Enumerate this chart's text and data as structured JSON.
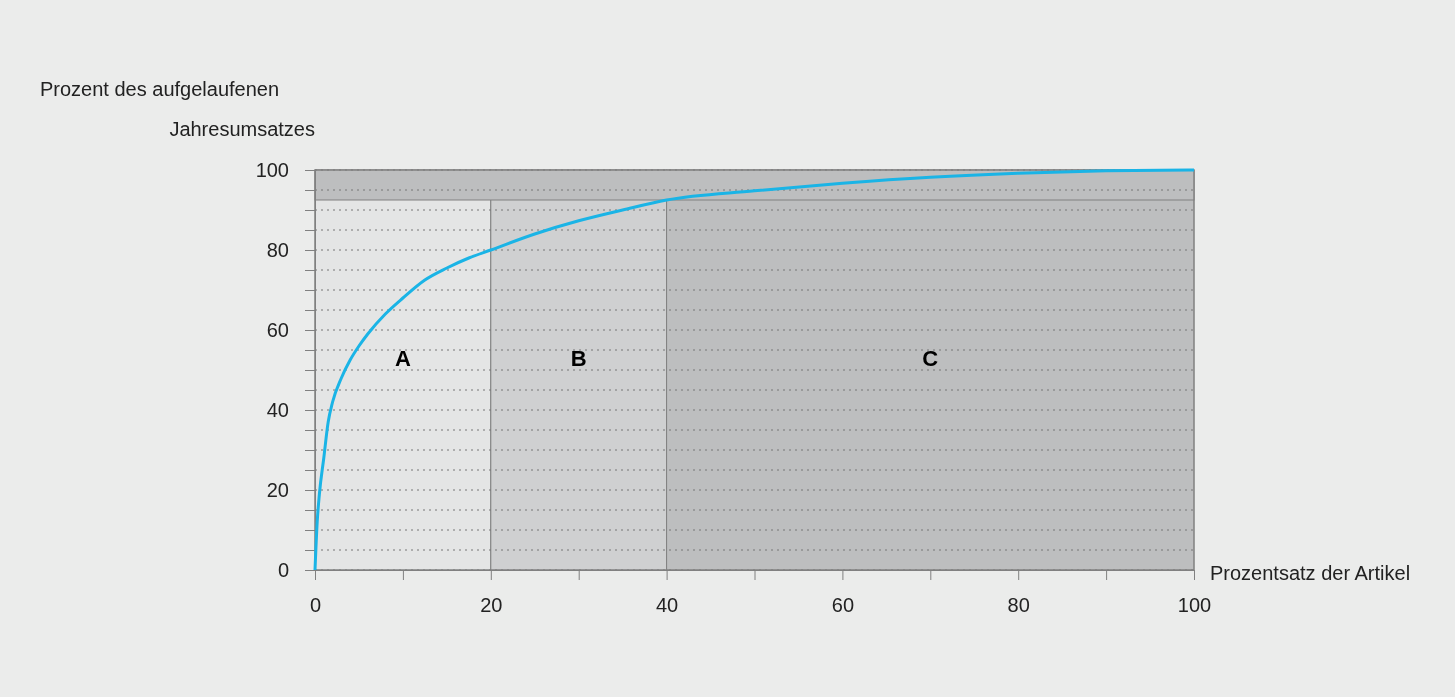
{
  "chart_data": {
    "type": "line",
    "xlabel": "Prozentsatz der Artikel",
    "ylabel": "Prozent des aufgelaufenen\nJahresumsatzes",
    "x": [
      0,
      0.25,
      0.5,
      1,
      1.5,
      2,
      3,
      4,
      5,
      6,
      8,
      10,
      12.5,
      15,
      17.5,
      20,
      25,
      30,
      35,
      40,
      50,
      60,
      70,
      80,
      90,
      100
    ],
    "series": [
      {
        "color": "#1ab4e6",
        "values": [
          0,
          12,
          19,
          28,
          37,
          42,
          48,
          52.5,
          56,
          59,
          64,
          68,
          72.5,
          75.5,
          78,
          80,
          84,
          87.3,
          90,
          92.5,
          94.8,
          96.7,
          98.2,
          99.2,
          99.8,
          100
        ]
      }
    ],
    "xlim": [
      0,
      100
    ],
    "ylim": [
      0,
      100
    ],
    "xticks": [
      0,
      {
        "value": 10,
        "label": null
      },
      20,
      {
        "value": 30,
        "label": null
      },
      40,
      {
        "value": 50,
        "label": null
      },
      60,
      {
        "value": 70,
        "label": null
      },
      80,
      {
        "value": 90,
        "label": null
      },
      100
    ],
    "yticks": [
      0,
      {
        "value": 5,
        "label": null
      },
      {
        "value": 10,
        "label": null
      },
      {
        "value": 15,
        "label": null
      },
      20,
      {
        "value": 25,
        "label": null
      },
      {
        "value": 30,
        "label": null
      },
      {
        "value": 35,
        "label": null
      },
      40,
      {
        "value": 45,
        "label": null
      },
      {
        "value": 50,
        "label": null
      },
      {
        "value": 55,
        "label": null
      },
      60,
      {
        "value": 65,
        "label": null
      },
      {
        "value": 70,
        "label": null
      },
      {
        "value": 75,
        "label": null
      },
      80,
      {
        "value": 85,
        "label": null
      },
      {
        "value": 90,
        "label": null
      },
      {
        "value": 95,
        "label": null
      },
      100
    ],
    "grid": "y",
    "marker": "none",
    "line_style": "solid",
    "bands": [
      {
        "axis": "x",
        "from": 0,
        "to": 20,
        "label": "A",
        "color": "#e4e5e5"
      },
      {
        "axis": "x",
        "from": 20,
        "to": 40,
        "label": "B",
        "color": "#cfd0d1"
      },
      {
        "axis": "x",
        "from": 40,
        "to": 100,
        "label": "C",
        "color": "#bdbebf"
      },
      {
        "axis": "y",
        "from": 92.5,
        "to": 100,
        "color": "#bdbebf"
      }
    ]
  }
}
